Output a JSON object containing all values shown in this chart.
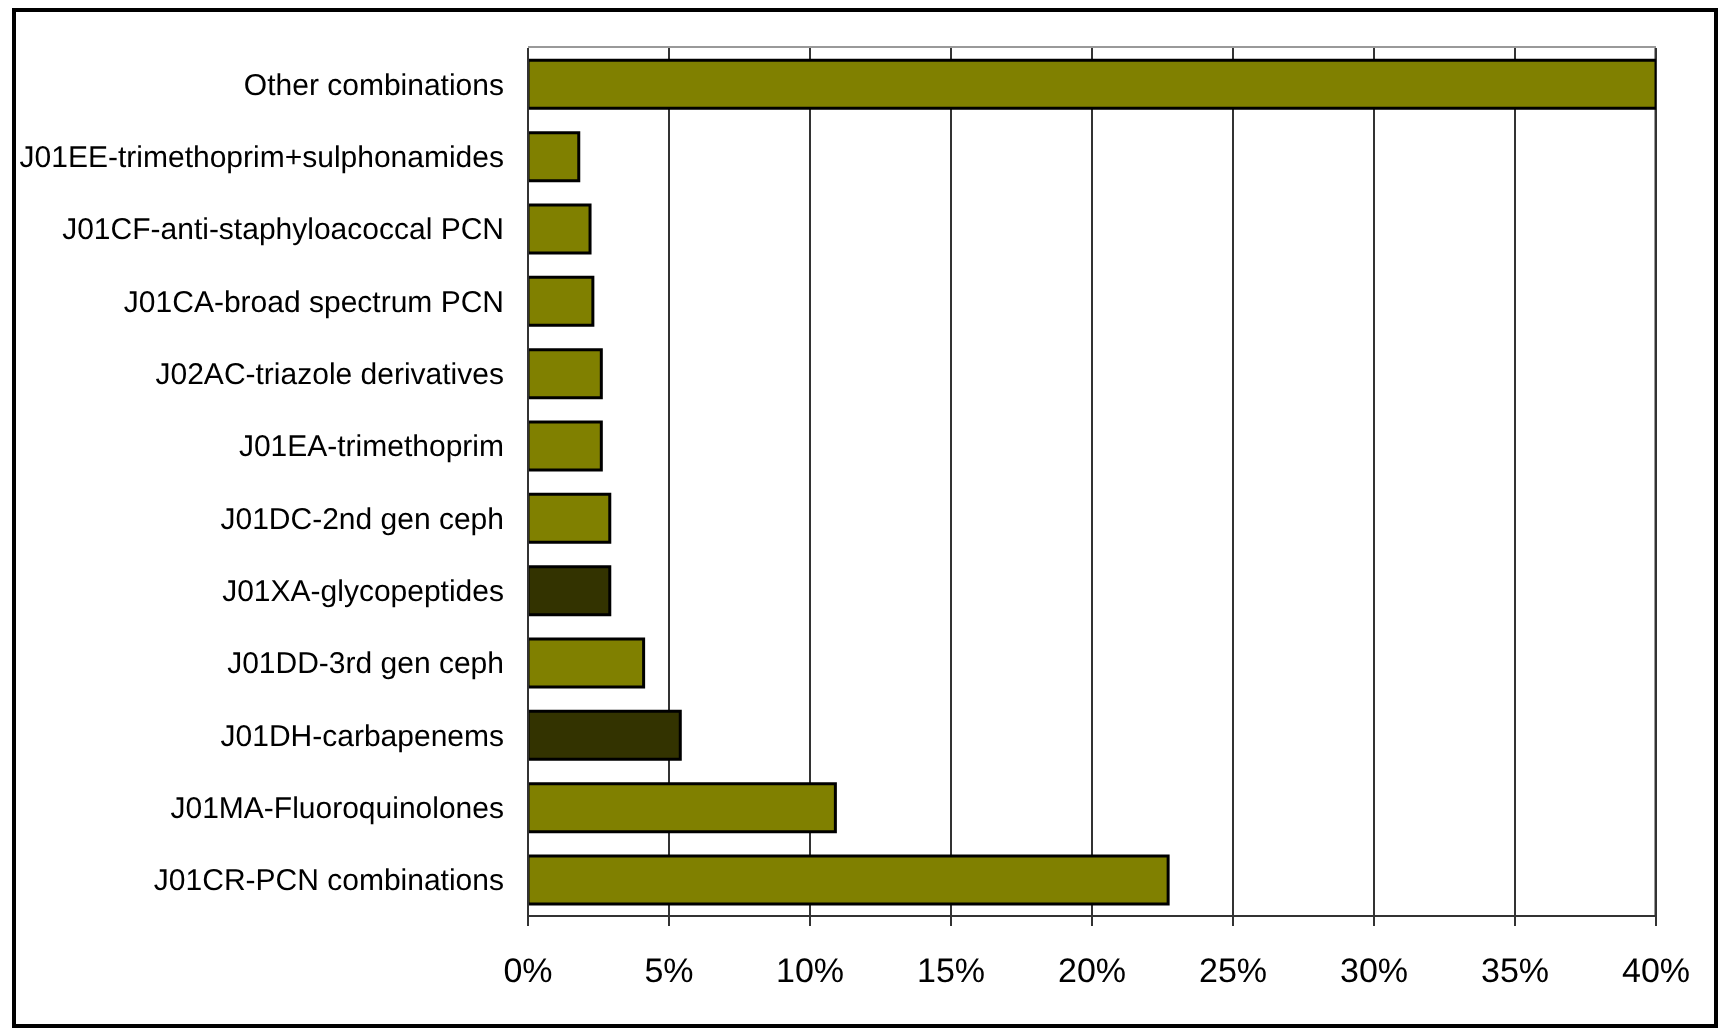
{
  "chart_data": {
    "type": "bar",
    "orientation": "horizontal",
    "categories": [
      "Other combinations",
      "J01EE-trimethoprim+sulphonamides",
      "J01CF-anti-staphyloacoccal PCN",
      "J01CA-broad spectrum PCN",
      "J02AC-triazole derivatives",
      "J01EA-trimethoprim",
      "J01DC-2nd gen ceph",
      "J01XA-glycopeptides",
      "J01DD-3rd gen ceph",
      "J01DH-carbapenems",
      "J01MA-Fluoroquinolones",
      "J01CR-PCN combinations"
    ],
    "values": [
      40,
      1.8,
      2.2,
      2.3,
      2.6,
      2.6,
      2.9,
      2.9,
      4.1,
      5.4,
      10.9,
      22.7
    ],
    "colors": [
      "#808000",
      "#808000",
      "#808000",
      "#808000",
      "#808000",
      "#808000",
      "#808000",
      "#333300",
      "#808000",
      "#333300",
      "#808000",
      "#808000"
    ],
    "xlim": [
      0,
      40
    ],
    "xticks": [
      {
        "value": 0,
        "label": "0%"
      },
      {
        "value": 5,
        "label": "5%"
      },
      {
        "value": 10,
        "label": "10%"
      },
      {
        "value": 15,
        "label": "15%"
      },
      {
        "value": 20,
        "label": "20%"
      },
      {
        "value": 25,
        "label": "25%"
      },
      {
        "value": 30,
        "label": "30%"
      },
      {
        "value": 35,
        "label": "35%"
      },
      {
        "value": 40,
        "label": "40%"
      }
    ],
    "grid": "x"
  }
}
